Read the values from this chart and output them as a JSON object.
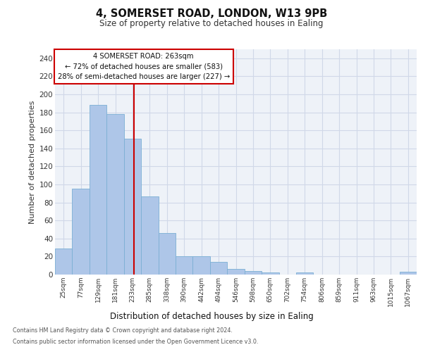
{
  "title1": "4, SOMERSET ROAD, LONDON, W13 9PB",
  "title2": "Size of property relative to detached houses in Ealing",
  "xlabel": "Distribution of detached houses by size in Ealing",
  "ylabel": "Number of detached properties",
  "categories": [
    "25sqm",
    "77sqm",
    "129sqm",
    "181sqm",
    "233sqm",
    "285sqm",
    "338sqm",
    "390sqm",
    "442sqm",
    "494sqm",
    "546sqm",
    "598sqm",
    "650sqm",
    "702sqm",
    "754sqm",
    "806sqm",
    "859sqm",
    "911sqm",
    "963sqm",
    "1015sqm",
    "1067sqm"
  ],
  "values": [
    29,
    95,
    188,
    178,
    151,
    87,
    46,
    20,
    20,
    14,
    6,
    4,
    2,
    0,
    2,
    0,
    0,
    0,
    0,
    0,
    3
  ],
  "bar_color": "#aec6e8",
  "bar_edge_color": "#7bafd4",
  "grid_color": "#d0d8e8",
  "background_color": "#eef2f8",
  "vline_color": "#cc0000",
  "annotation_text": "4 SOMERSET ROAD: 263sqm\n← 72% of detached houses are smaller (583)\n28% of semi-detached houses are larger (227) →",
  "annotation_box_color": "#ffffff",
  "annotation_border_color": "#cc0000",
  "footnote1": "Contains HM Land Registry data © Crown copyright and database right 2024.",
  "footnote2": "Contains public sector information licensed under the Open Government Licence v3.0.",
  "ylim": [
    0,
    250
  ],
  "yticks": [
    0,
    20,
    40,
    60,
    80,
    100,
    120,
    140,
    160,
    180,
    200,
    220,
    240
  ]
}
